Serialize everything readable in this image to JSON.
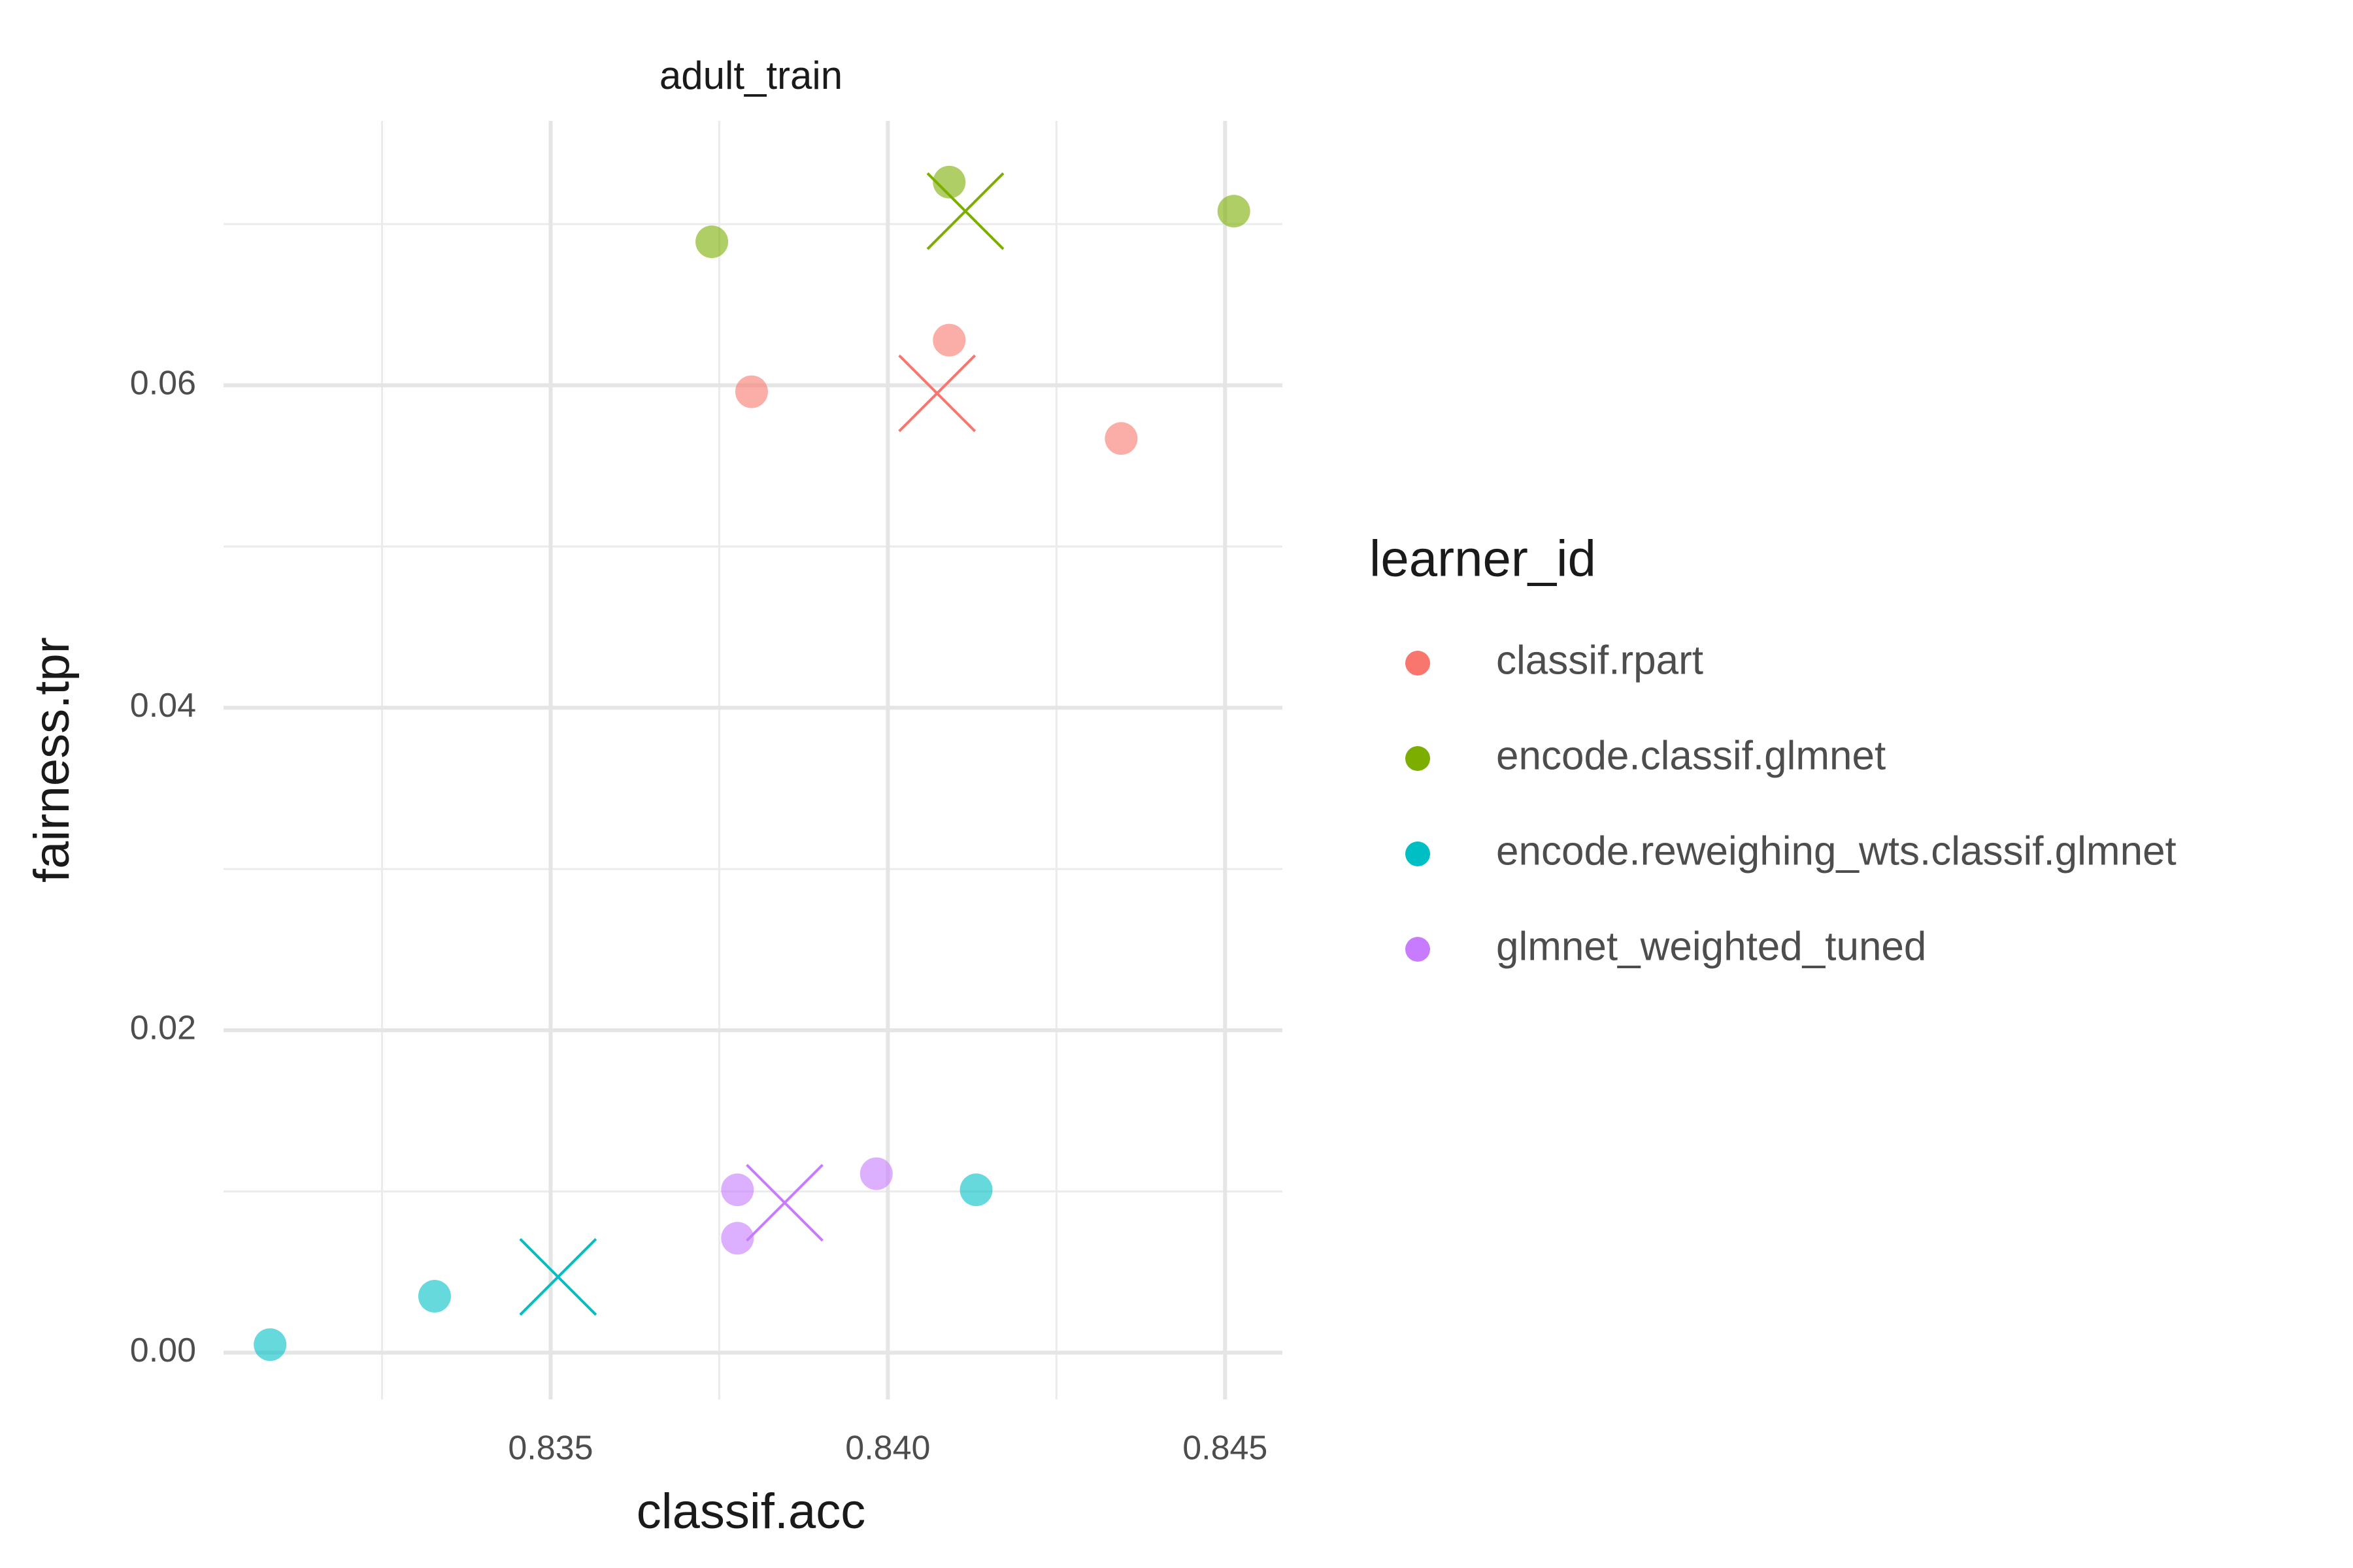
{
  "chart_data": {
    "type": "scatter",
    "title": "adult_train",
    "x_label": "classif.acc",
    "y_label": "fairness.tpr",
    "legend_title": "learner_id",
    "legend_position": "right",
    "grid": true,
    "xlim": [
      0.83015,
      0.84585
    ],
    "ylim": [
      -0.0029,
      0.0764
    ],
    "xticks": [
      {
        "value": 0.835,
        "label": "0.835"
      },
      {
        "value": 0.84,
        "label": "0.840"
      },
      {
        "value": 0.845,
        "label": "0.845"
      }
    ],
    "yticks": [
      {
        "value": 0,
        "label": "0.00"
      },
      {
        "value": 0.02,
        "label": "0.02"
      },
      {
        "value": 0.04,
        "label": "0.04"
      },
      {
        "value": 0.06,
        "label": "0.06"
      }
    ],
    "x_minor_grid": [
      0.8325,
      0.8375,
      0.8425
    ],
    "y_minor_grid": [
      0.01,
      0.03,
      0.05,
      0.07
    ],
    "series": [
      {
        "name": "classif.rpart",
        "color": "#F8766D",
        "x": [
          0.83798,
          0.84091,
          0.84346
        ],
        "values": [
          0.0596,
          0.0628,
          0.0567
        ],
        "mean_x": 0.84073,
        "mean_y": 0.0595
      },
      {
        "name": "encode.classif.glmnet",
        "color": "#7CAE00",
        "x": [
          0.83739,
          0.84091,
          0.84513
        ],
        "values": [
          0.0689,
          0.0726,
          0.0708
        ],
        "mean_x": 0.84115,
        "mean_y": 0.0708
      },
      {
        "name": "encode.reweighing_wts.classif.glmnet",
        "color": "#00BFC4",
        "x": [
          0.83084,
          0.83328,
          0.84131
        ],
        "values": [
          0.0005,
          0.0035,
          0.0101
        ],
        "mean_x": 0.83511,
        "mean_y": 0.0047
      },
      {
        "name": "glmnet_weighted_tuned",
        "color": "#C77CFF",
        "x": [
          0.83777,
          0.83777,
          0.83983
        ],
        "values": [
          0.0101,
          0.0071,
          0.0111
        ],
        "mean_x": 0.83847,
        "mean_y": 0.0093
      }
    ]
  }
}
